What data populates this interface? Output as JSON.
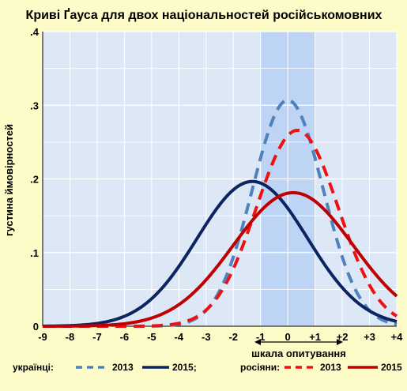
{
  "chart_data": {
    "type": "line",
    "title": "Криві Ґауса для двох національностей російськомовних",
    "xlabel": "шкала опитування",
    "ylabel": "густина ймовірностей",
    "xlim": [
      -9,
      4
    ],
    "ylim": [
      0,
      0.4
    ],
    "x_ticks": [
      "-9",
      "-8",
      "-7",
      "-6",
      "-5",
      "-4",
      "-3",
      "-2",
      "-1",
      "0",
      "+1",
      "+2",
      "+3",
      "+4"
    ],
    "y_ticks": [
      "0",
      ".1",
      ".2",
      ".3",
      ".4"
    ],
    "highlight_band": [
      -1,
      1
    ],
    "grid": true,
    "legend_groups": [
      {
        "label": "українці:",
        "entries": [
          "2013",
          "2015;"
        ]
      },
      {
        "label": "росіяни:",
        "entries": [
          "2013",
          "2015"
        ]
      }
    ],
    "series": [
      {
        "name": "українці 2013",
        "group": "українці",
        "year_label": "2013",
        "style": "dashed",
        "color": "#4f81bd",
        "mean": 0.0,
        "sd": 1.3
      },
      {
        "name": "українці 2015",
        "group": "українці",
        "year_label": "2015;",
        "style": "solid",
        "color": "#0c2461",
        "mean": -1.3,
        "sd": 2.03
      },
      {
        "name": "росіяни 2013",
        "group": "росіяни",
        "year_label": "2013",
        "style": "dashed",
        "color": "#ee1111",
        "mean": 0.35,
        "sd": 1.5
      },
      {
        "name": "росіяни 2015",
        "group": "росіяни",
        "year_label": "2015",
        "style": "solid",
        "color": "#c00000",
        "mean": 0.2,
        "sd": 2.2
      }
    ]
  }
}
